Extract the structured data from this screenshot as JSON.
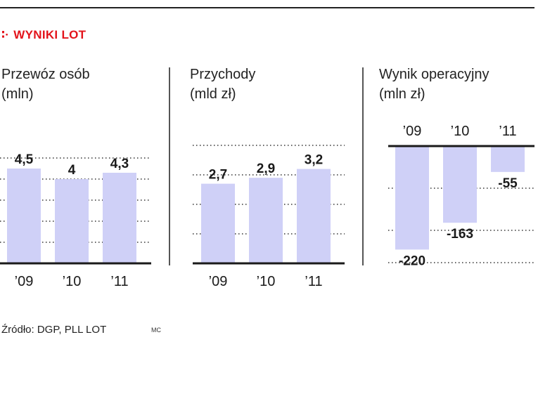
{
  "header": {
    "mark": "∶·",
    "title": "WYNIKI LOT"
  },
  "source": {
    "text": "Źródło: DGP, PLL LOT",
    "credit": "MC"
  },
  "colors": {
    "bar": "#cfd0f7",
    "axis": "#1a1a1a",
    "grid": "#333333",
    "header": "#e3141b"
  },
  "chart_data": [
    {
      "type": "bar",
      "title_line1": "Przewóz osób",
      "title_line2": "(mln)",
      "categories": [
        "’09",
        "’10",
        "’11"
      ],
      "values": [
        4.5,
        4,
        4.3
      ],
      "labels": [
        "4,5",
        "4",
        "4,3"
      ],
      "ylim": [
        0,
        5
      ]
    },
    {
      "type": "bar",
      "title_line1": "Przychody",
      "title_line2": "(mld zł)",
      "categories": [
        "’09",
        "’10",
        "’11"
      ],
      "values": [
        2.7,
        2.9,
        3.2
      ],
      "labels": [
        "2,7",
        "2,9",
        "3,2"
      ],
      "ylim": [
        0,
        4
      ]
    },
    {
      "type": "bar",
      "title_line1": "Wynik operacyjny",
      "title_line2": "(mln zł)",
      "categories": [
        "’09",
        "’10",
        "’11"
      ],
      "values": [
        -220,
        -163,
        -55
      ],
      "labels": [
        "-220",
        "-163",
        "-55"
      ],
      "ylim": [
        -220,
        0
      ]
    }
  ]
}
